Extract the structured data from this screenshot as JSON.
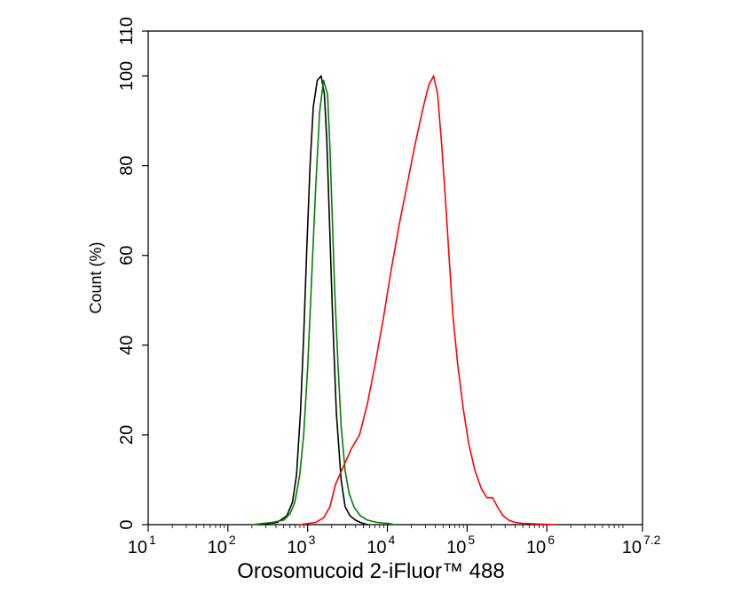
{
  "chart_data": {
    "type": "line",
    "xlabel": "Orosomucoid 2-iFluor™ 488",
    "ylabel": "Count  (%)",
    "x_scale": "log10",
    "xlim_log10": [
      1,
      7.2
    ],
    "ylim": [
      0,
      110
    ],
    "y_ticks": [
      "0",
      "20",
      "40",
      "60",
      "80",
      "100",
      "110"
    ],
    "x_ticks": [
      {
        "base": "10",
        "exp": "1"
      },
      {
        "base": "10",
        "exp": "2"
      },
      {
        "base": "10",
        "exp": "3"
      },
      {
        "base": "10",
        "exp": "4"
      },
      {
        "base": "10",
        "exp": "5"
      },
      {
        "base": "10",
        "exp": "6"
      },
      {
        "base": "10",
        "exp": "7.2"
      }
    ],
    "grid": false,
    "legend": "none",
    "series": [
      {
        "color": "#000000",
        "x_log10": [
          2.4,
          2.62,
          2.74,
          2.81,
          2.86,
          2.91,
          2.95,
          2.99,
          3.03,
          3.07,
          3.12,
          3.17,
          3.21,
          3.24,
          3.27,
          3.31,
          3.36,
          3.42,
          3.47,
          3.53,
          3.6,
          3.66,
          3.75
        ],
        "values": [
          0,
          0.5,
          2,
          5,
          11,
          25,
          42,
          62,
          80,
          93,
          99,
          100,
          96,
          86,
          70,
          48,
          25,
          10,
          4,
          2,
          1,
          0.5,
          0
        ]
      },
      {
        "color": "#008000",
        "x_log10": [
          2.3,
          2.55,
          2.7,
          2.78,
          2.84,
          2.9,
          2.95,
          3.0,
          3.05,
          3.1,
          3.15,
          3.2,
          3.25,
          3.28,
          3.31,
          3.34,
          3.38,
          3.42,
          3.47,
          3.52,
          3.58,
          3.66,
          3.75,
          3.87,
          4.0,
          4.1
        ],
        "values": [
          0,
          0.5,
          1,
          2.5,
          5,
          11,
          20,
          35,
          55,
          75,
          92,
          99,
          96,
          84,
          68,
          52,
          36,
          22,
          12,
          7,
          4,
          2,
          1,
          0.5,
          0.3,
          0
        ]
      },
      {
        "color": "#ff0000",
        "x_log10": [
          2.9,
          3.1,
          3.2,
          3.28,
          3.35,
          3.45,
          3.55,
          3.65,
          3.75,
          3.85,
          3.95,
          4.05,
          4.15,
          4.25,
          4.35,
          4.45,
          4.52,
          4.58,
          4.63,
          4.68,
          4.73,
          4.78,
          4.82,
          4.88,
          4.95,
          5.02,
          5.1,
          5.18,
          5.25,
          5.32,
          5.38,
          5.45,
          5.52,
          5.6,
          5.7,
          5.82,
          5.95,
          6.1
        ],
        "values": [
          0,
          0.5,
          1.5,
          4,
          9,
          13,
          17,
          20,
          27,
          36,
          46,
          57,
          67,
          76,
          85,
          93,
          98,
          100,
          96,
          85,
          72,
          58,
          47,
          36,
          26,
          18,
          12,
          8,
          6,
          6,
          4,
          2,
          1,
          0.5,
          0.3,
          0.2,
          0.1,
          0
        ]
      }
    ]
  }
}
